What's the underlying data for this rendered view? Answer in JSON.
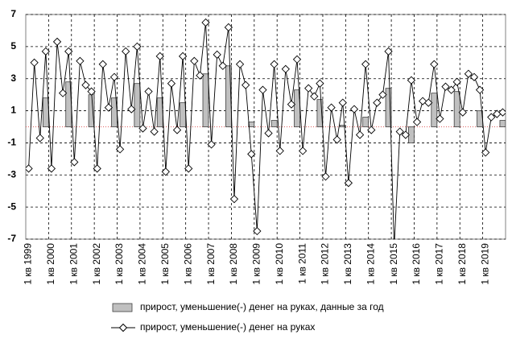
{
  "chart_data": {
    "type": "combo",
    "categories": [
      "1 кв 1999",
      null,
      null,
      null,
      "1 кв 2000",
      null,
      null,
      null,
      "1 кв 2001",
      null,
      null,
      null,
      "1 кв 2002",
      null,
      null,
      null,
      "1 кв 2003",
      null,
      null,
      null,
      "1 кв 2004",
      null,
      null,
      null,
      "1 кв 2005",
      null,
      null,
      null,
      "1 кв 2006",
      null,
      null,
      null,
      "1 кв 2007",
      null,
      null,
      null,
      "1 кв 2008",
      null,
      null,
      null,
      "1 кв 2009",
      null,
      null,
      null,
      "1 кв 2010",
      null,
      null,
      null,
      "1 кв 2011",
      null,
      null,
      null,
      "1 кв 2012",
      null,
      null,
      null,
      "1 кв 2013",
      null,
      null,
      null,
      "1 кв 2014",
      null,
      null,
      null,
      "1 кв 2015",
      null,
      null,
      null,
      "1 кв 2016",
      null,
      null,
      null,
      "1 кв 2017",
      null,
      null,
      null,
      "1 кв 2018",
      null,
      null,
      null,
      "1 кв 2019",
      null,
      null,
      null
    ],
    "series": [
      {
        "name": "прирост, уменьшение(-) денег на руках, данные за год",
        "type": "bar",
        "color": "#c0c0c0",
        "values": [
          null,
          null,
          null,
          1.8,
          null,
          null,
          null,
          2.8,
          null,
          null,
          null,
          2.0,
          null,
          null,
          null,
          1.8,
          null,
          null,
          null,
          2.7,
          null,
          null,
          null,
          1.8,
          null,
          null,
          null,
          1.5,
          null,
          null,
          null,
          3.3,
          null,
          null,
          null,
          3.8,
          null,
          null,
          null,
          0.3,
          null,
          null,
          null,
          0.4,
          null,
          null,
          null,
          2.3,
          null,
          null,
          null,
          1.7,
          null,
          null,
          null,
          0.1,
          null,
          null,
          null,
          0.6,
          null,
          null,
          null,
          2.4,
          null,
          null,
          null,
          -1.0,
          null,
          null,
          null,
          2.1,
          null,
          null,
          null,
          2.2,
          null,
          null,
          null,
          1.0,
          null,
          null,
          null,
          0.4
        ]
      },
      {
        "name": "прирост, уменьшение(-) денег на руках",
        "type": "line",
        "color": "#000000",
        "values": [
          -2.6,
          4.0,
          -0.7,
          4.7,
          -2.6,
          5.3,
          2.1,
          4.7,
          -2.2,
          4.1,
          2.6,
          2.2,
          -2.6,
          3.9,
          1.2,
          3.1,
          -1.4,
          4.7,
          1.1,
          5.0,
          -0.1,
          2.2,
          -0.3,
          4.4,
          -2.8,
          2.7,
          -0.2,
          4.4,
          -2.6,
          4.1,
          3.2,
          6.5,
          -1.1,
          4.5,
          3.8,
          6.2,
          -4.5,
          3.9,
          2.6,
          -1.7,
          -6.5,
          2.3,
          -0.4,
          3.9,
          -1.5,
          3.6,
          1.4,
          4.2,
          -1.5,
          2.4,
          1.9,
          2.7,
          -3.1,
          1.2,
          -0.8,
          1.5,
          -3.5,
          1.1,
          -0.5,
          3.9,
          -0.2,
          1.5,
          2.0,
          4.7,
          -7.5,
          -0.3,
          -0.5,
          2.9,
          0.3,
          1.6,
          1.5,
          3.9,
          0.5,
          2.5,
          2.3,
          2.8,
          0.9,
          3.3,
          3.1,
          2.3,
          -1.6,
          0.6,
          0.8,
          0.9
        ]
      }
    ],
    "ylim": [
      -7,
      7
    ],
    "yticks": [
      -7,
      -5,
      -3,
      -1,
      1,
      3,
      5,
      7
    ],
    "grid": true
  }
}
